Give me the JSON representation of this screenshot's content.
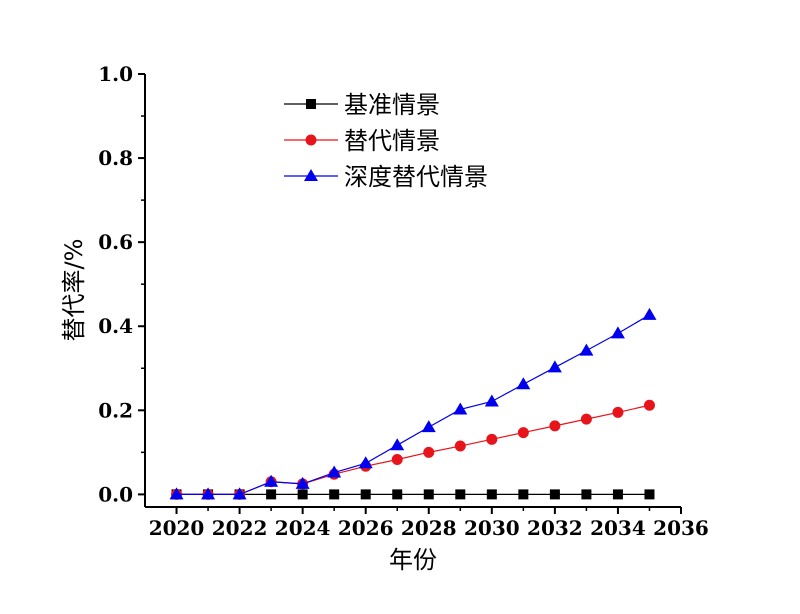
{
  "chart_data": {
    "type": "line",
    "title": "",
    "xlabel": "年份",
    "ylabel": "替代率/%",
    "xlim": [
      2019,
      2036
    ],
    "ylim": [
      -0.03,
      1.0
    ],
    "x_ticks": [
      2020,
      2022,
      2024,
      2026,
      2028,
      2030,
      2032,
      2034,
      2036
    ],
    "y_ticks": [
      0.0,
      0.2,
      0.4,
      0.6,
      0.8,
      1.0
    ],
    "x_tick_labels": [
      "2020",
      "2022",
      "2024",
      "2026",
      "2028",
      "2030",
      "2032",
      "2034",
      "2036"
    ],
    "y_tick_labels": [
      "0.0",
      "0.2",
      "0.4",
      "0.6",
      "0.8",
      "1.0"
    ],
    "grid": false,
    "legend_position": "top-center",
    "x": [
      2020,
      2021,
      2022,
      2023,
      2024,
      2025,
      2026,
      2027,
      2028,
      2029,
      2030,
      2031,
      2032,
      2033,
      2034,
      2035
    ],
    "series": [
      {
        "name": "基准情景",
        "color": "#000000",
        "marker": "square",
        "values": [
          0,
          0,
          0,
          0,
          0,
          0,
          0,
          0,
          0,
          0,
          0,
          0,
          0,
          0,
          0,
          0
        ]
      },
      {
        "name": "替代情景",
        "color": "#e8141c",
        "marker": "circle",
        "values": [
          0,
          0,
          0,
          0.03,
          0.025,
          0.048,
          0.067,
          0.083,
          0.1,
          0.115,
          0.131,
          0.147,
          0.163,
          0.179,
          0.195,
          0.212
        ]
      },
      {
        "name": "深度替代情景",
        "color": "#0000ee",
        "marker": "triangle",
        "values": [
          0,
          0,
          0,
          0.03,
          0.025,
          0.052,
          0.074,
          0.117,
          0.16,
          0.202,
          0.221,
          0.262,
          0.302,
          0.342,
          0.383,
          0.427
        ]
      }
    ]
  }
}
